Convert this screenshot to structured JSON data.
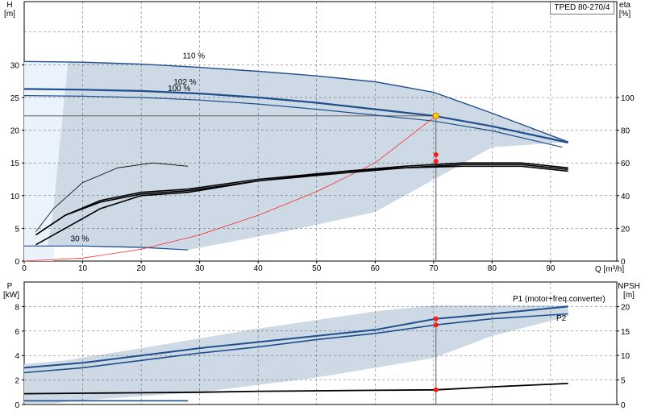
{
  "title": "TPED 80-270/4",
  "chart_data": [
    {
      "type": "line",
      "name": "head-efficiency",
      "xlabel": "Q [m³/h]",
      "ylabel_left": "H\n[m]",
      "ylabel_right": "eta\n[%]",
      "xlim": [
        0,
        100
      ],
      "ylim_left": [
        0,
        35
      ],
      "ylim_right": [
        0,
        140
      ],
      "x_ticks": [
        "0",
        "10",
        "20",
        "30",
        "40",
        "50",
        "60",
        "70",
        "80",
        "90"
      ],
      "y_ticks_left": [
        "0",
        "5",
        "10",
        "15",
        "20",
        "25",
        "30"
      ],
      "y_ticks_right": [
        "0",
        "20",
        "40",
        "60",
        "80",
        "100"
      ],
      "grid": true,
      "speed_labels": [
        "110 %",
        "102 %",
        "100 %",
        "30 %"
      ],
      "series": [
        {
          "name": "110 %",
          "points": [
            [
              0,
              30.5
            ],
            [
              10,
              30.4
            ],
            [
              20,
              30.1
            ],
            [
              30,
              29.6
            ],
            [
              40,
              29.0
            ],
            [
              50,
              28.3
            ],
            [
              60,
              27.4
            ],
            [
              70,
              25.8
            ],
            [
              80,
              22.6
            ],
            [
              93,
              18.2
            ]
          ]
        },
        {
          "name": "102 %",
          "points": [
            [
              0,
              26.3
            ],
            [
              10,
              26.2
            ],
            [
              20,
              26.0
            ],
            [
              30,
              25.6
            ],
            [
              40,
              25.0
            ],
            [
              50,
              24.2
            ],
            [
              60,
              23.2
            ],
            [
              70,
              22.2
            ],
            [
              80,
              20.6
            ],
            [
              93,
              18.1
            ]
          ]
        },
        {
          "name": "100 %",
          "points": [
            [
              0,
              25.3
            ],
            [
              10,
              25.2
            ],
            [
              20,
              25.0
            ],
            [
              30,
              24.6
            ],
            [
              40,
              24.0
            ],
            [
              50,
              23.2
            ],
            [
              60,
              22.3
            ],
            [
              70,
              21.4
            ],
            [
              80,
              19.9
            ],
            [
              92,
              17.4
            ]
          ]
        },
        {
          "name": "30 %",
          "points": [
            [
              0,
              2.3
            ],
            [
              10,
              2.3
            ],
            [
              20,
              2.1
            ],
            [
              28,
              1.7
            ]
          ]
        },
        {
          "name": "system-curve",
          "points": [
            [
              0,
              0
            ],
            [
              10,
              0.45
            ],
            [
              20,
              1.8
            ],
            [
              30,
              4.0
            ],
            [
              40,
              7.0
            ],
            [
              50,
              10.6
            ],
            [
              60,
              15.0
            ],
            [
              70.4,
              22.2
            ]
          ]
        }
      ],
      "efficiency_series": [
        {
          "points": [
            [
              2,
              16
            ],
            [
              7,
              28
            ],
            [
              13,
              37
            ],
            [
              20,
              42
            ],
            [
              28,
              44
            ],
            [
              40,
              50
            ],
            [
              55,
              55
            ],
            [
              65,
              58
            ],
            [
              75,
              60
            ],
            [
              85,
              60
            ],
            [
              93,
              57
            ]
          ]
        },
        {
          "points": [
            [
              2,
              16
            ],
            [
              7,
              28
            ],
            [
              13,
              36
            ],
            [
              20,
              41
            ],
            [
              28,
              43
            ],
            [
              40,
              49
            ],
            [
              55,
              54
            ],
            [
              65,
              57
            ],
            [
              75,
              59
            ],
            [
              85,
              59
            ],
            [
              93,
              56
            ]
          ]
        },
        {
          "points": [
            [
              2,
              18
            ],
            [
              5,
              32
            ],
            [
              10,
              48
            ],
            [
              16,
              57
            ],
            [
              22,
              60
            ],
            [
              28,
              58
            ]
          ]
        },
        {
          "points": [
            [
              2,
              10
            ],
            [
              7,
              20
            ],
            [
              13,
              32
            ],
            [
              20,
              40
            ],
            [
              28,
              42
            ],
            [
              40,
              49
            ],
            [
              55,
              55
            ],
            [
              65,
              57
            ],
            [
              75,
              58
            ],
            [
              85,
              58
            ],
            [
              93,
              55
            ]
          ]
        }
      ],
      "duty_point": {
        "q": 70.4,
        "h": 22.2,
        "eta_values": [
          65,
          61
        ]
      }
    },
    {
      "type": "line",
      "name": "power-npsh",
      "xlabel": "",
      "ylabel_left": "P\n[kW]",
      "ylabel_right": "NPSH\n[m]",
      "xlim": [
        0,
        100
      ],
      "ylim_left": [
        0,
        9
      ],
      "ylim_right": [
        0,
        22.5
      ],
      "y_ticks_left": [
        "0",
        "2",
        "4",
        "6",
        "8"
      ],
      "y_ticks_right": [
        "0",
        "5",
        "10",
        "15",
        "20"
      ],
      "grid": true,
      "labels": [
        "P1 (motor+freq.converter)",
        "P2"
      ],
      "series": [
        {
          "name": "P1 (motor+freq.converter)",
          "points": [
            [
              0,
              3.0
            ],
            [
              10,
              3.4
            ],
            [
              20,
              4.0
            ],
            [
              30,
              4.6
            ],
            [
              40,
              5.1
            ],
            [
              50,
              5.6
            ],
            [
              60,
              6.1
            ],
            [
              70.4,
              7.0
            ],
            [
              80,
              7.4
            ],
            [
              93,
              8.0
            ]
          ]
        },
        {
          "name": "P2",
          "points": [
            [
              0,
              2.6
            ],
            [
              10,
              3.0
            ],
            [
              20,
              3.6
            ],
            [
              30,
              4.2
            ],
            [
              40,
              4.7
            ],
            [
              50,
              5.3
            ],
            [
              60,
              5.8
            ],
            [
              70.4,
              6.5
            ],
            [
              80,
              7.0
            ],
            [
              93,
              7.4
            ]
          ]
        },
        {
          "name": "NPSH",
          "points": [
            [
              0,
              2.2
            ],
            [
              10,
              2.3
            ],
            [
              20,
              2.4
            ],
            [
              30,
              2.5
            ],
            [
              40,
              2.7
            ],
            [
              50,
              2.8
            ],
            [
              60,
              2.9
            ],
            [
              70.4,
              3.0
            ],
            [
              80,
              3.6
            ],
            [
              93,
              4.3
            ]
          ]
        },
        {
          "name": "30 % P",
          "points": [
            [
              0,
              0.3
            ],
            [
              10,
              0.3
            ],
            [
              20,
              0.3
            ],
            [
              28,
              0.3
            ]
          ]
        }
      ],
      "duty_point": {
        "q": 70.4,
        "p1": 7.0,
        "p2": 6.5,
        "npsh": 3.0
      }
    }
  ]
}
